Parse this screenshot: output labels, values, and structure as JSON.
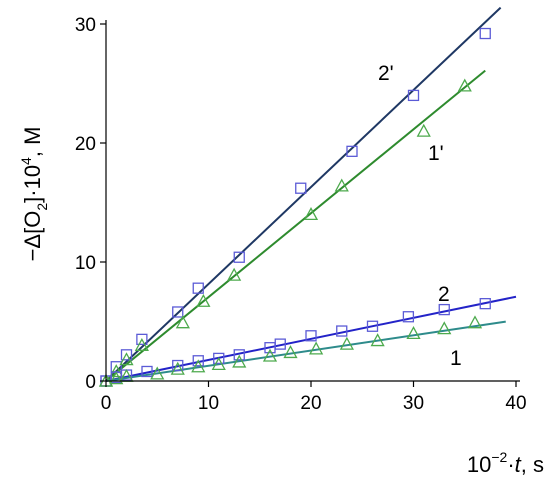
{
  "chart_data": {
    "type": "scatter",
    "x_axis": {
      "label_parts": [
        "10",
        "−2",
        "·",
        "t",
        ", s"
      ],
      "min": 0,
      "max": 40,
      "ticks": [
        "0",
        "10",
        "20",
        "30",
        "40"
      ]
    },
    "y_axis": {
      "label_parts": [
        "−Δ[O",
        "2",
        "]·10",
        "4",
        ", M"
      ],
      "min": 0,
      "max": 30,
      "ticks": [
        "0",
        "10",
        "20",
        "30"
      ]
    },
    "grid": false,
    "series": [
      {
        "name": "2'",
        "marker": "square",
        "marker_color": "#5b5bd6",
        "line_color": "#1f3864",
        "fit": {
          "slope": 0.815,
          "intercept": 0
        },
        "fit_x_max": 38.5,
        "points": [
          [
            0,
            0
          ],
          [
            1,
            1.2
          ],
          [
            2,
            2.2
          ],
          [
            3.5,
            3.5
          ],
          [
            7,
            5.8
          ],
          [
            9,
            7.8
          ],
          [
            13,
            10.4
          ],
          [
            19,
            16.2
          ],
          [
            24,
            19.3
          ],
          [
            30,
            24
          ],
          [
            37,
            29.2
          ]
        ]
      },
      {
        "name": "1'",
        "marker": "triangle",
        "marker_color": "#4daa4d",
        "line_color": "#2e8b2e",
        "fit": {
          "slope": 0.705,
          "intercept": 0
        },
        "fit_x_max": 37,
        "points": [
          [
            0,
            0
          ],
          [
            1,
            0.8
          ],
          [
            2,
            1.8
          ],
          [
            3.5,
            3
          ],
          [
            7.5,
            4.9
          ],
          [
            9.5,
            6.7
          ],
          [
            12.5,
            8.9
          ],
          [
            20,
            14
          ],
          [
            23,
            16.4
          ],
          [
            31,
            21
          ],
          [
            35,
            24.8
          ]
        ]
      },
      {
        "name": "2",
        "marker": "square",
        "marker_color": "#5b5bd6",
        "line_color": "#2323c8",
        "fit": {
          "slope": 0.177,
          "intercept": 0
        },
        "fit_x_max": 40,
        "points": [
          [
            0,
            0
          ],
          [
            1,
            0.3
          ],
          [
            2,
            0.5
          ],
          [
            4,
            0.8
          ],
          [
            7,
            1.3
          ],
          [
            9,
            1.7
          ],
          [
            11,
            1.9
          ],
          [
            13,
            2.2
          ],
          [
            16,
            2.8
          ],
          [
            17,
            3.1
          ],
          [
            20,
            3.8
          ],
          [
            23,
            4.2
          ],
          [
            26,
            4.6
          ],
          [
            29.5,
            5.4
          ],
          [
            33,
            6
          ],
          [
            37,
            6.5
          ]
        ]
      },
      {
        "name": "1",
        "marker": "triangle",
        "marker_color": "#4daa4d",
        "line_color": "#2e8b8b",
        "fit": {
          "slope": 0.128,
          "intercept": 0
        },
        "fit_x_max": 39,
        "points": [
          [
            0,
            0
          ],
          [
            1,
            0.2
          ],
          [
            2,
            0.4
          ],
          [
            5,
            0.6
          ],
          [
            7,
            1
          ],
          [
            9,
            1.2
          ],
          [
            11,
            1.4
          ],
          [
            13,
            1.6
          ],
          [
            16,
            2.1
          ],
          [
            18,
            2.4
          ],
          [
            20.5,
            2.7
          ],
          [
            23.5,
            3.1
          ],
          [
            26.5,
            3.4
          ],
          [
            30,
            4
          ],
          [
            33,
            4.4
          ],
          [
            36,
            4.9
          ]
        ]
      }
    ],
    "series_labels": [
      "2'",
      "1'",
      "2",
      "1"
    ]
  }
}
